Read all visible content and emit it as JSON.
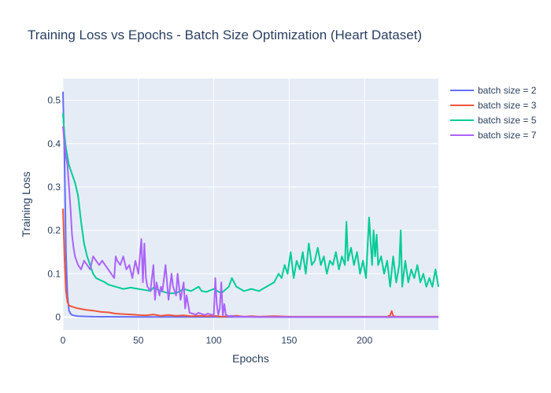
{
  "chart_data": {
    "type": "line",
    "title": "Training Loss vs Epochs - Batch Size Optimization (Heart Dataset)",
    "xlabel": "Epochs",
    "ylabel": "Training Loss",
    "xlim": [
      0,
      249
    ],
    "ylim": [
      -0.03,
      0.55
    ],
    "x_ticks": [
      0,
      50,
      100,
      150,
      200
    ],
    "y_ticks": [
      0,
      0.1,
      0.2,
      0.3,
      0.4,
      0.5
    ],
    "x_tick_labels": [
      "0",
      "50",
      "100",
      "150",
      "200"
    ],
    "y_tick_labels": [
      "0",
      "0.1",
      "0.2",
      "0.3",
      "0.4",
      "0.5"
    ],
    "grid": true,
    "legend_position": "right",
    "colors": {
      "plot_background": "#e5ecf6",
      "grid": "#ffffff",
      "text": "#2a3f5f"
    },
    "series": [
      {
        "name": "batch size = 2",
        "color": "#636efa",
        "x": [
          0,
          1,
          2,
          3,
          4,
          5,
          6,
          8,
          10,
          15,
          20,
          30,
          40,
          50,
          60,
          80,
          100,
          120,
          150,
          200,
          249
        ],
        "y": [
          0.52,
          0.37,
          0.15,
          0.05,
          0.015,
          0.008,
          0.005,
          0.003,
          0.002,
          0.0015,
          0.001,
          0.0008,
          0.0006,
          0.0005,
          0.0004,
          0.0003,
          0.0002,
          0.0002,
          0.0001,
          0.0001,
          0.0001
        ]
      },
      {
        "name": "batch size = 3",
        "color": "#ef553b",
        "x": [
          0,
          1,
          2,
          3,
          4,
          6,
          8,
          10,
          15,
          20,
          25,
          30,
          35,
          40,
          45,
          50,
          55,
          60,
          65,
          70,
          75,
          80,
          85,
          90,
          95,
          100,
          105,
          110,
          115,
          120,
          125,
          130,
          140,
          150,
          160,
          170,
          180,
          190,
          200,
          210,
          215,
          217,
          218,
          219,
          221,
          230,
          240,
          249
        ],
        "y": [
          0.25,
          0.14,
          0.06,
          0.035,
          0.027,
          0.024,
          0.022,
          0.02,
          0.017,
          0.015,
          0.012,
          0.011,
          0.008,
          0.007,
          0.006,
          0.005,
          0.004,
          0.006,
          0.003,
          0.005,
          0.003,
          0.004,
          0.002,
          0.003,
          0.002,
          0.003,
          0.001,
          0.002,
          0.003,
          0.001,
          0.002,
          0.001,
          0.002,
          0.001,
          0.001,
          0.001,
          0.001,
          0.001,
          0.001,
          0.001,
          0.001,
          0.004,
          0.014,
          0.003,
          0.001,
          0.001,
          0.001,
          0.001
        ]
      },
      {
        "name": "batch size = 5",
        "color": "#00cc96",
        "x": [
          0,
          1,
          2,
          3,
          4,
          5,
          6,
          8,
          10,
          12,
          14,
          16,
          18,
          20,
          22,
          25,
          28,
          30,
          35,
          40,
          45,
          50,
          55,
          58,
          60,
          65,
          70,
          75,
          80,
          85,
          90,
          92,
          95,
          100,
          105,
          110,
          112,
          115,
          120,
          125,
          130,
          135,
          140,
          143,
          145,
          147,
          149,
          151,
          153,
          155,
          157,
          159,
          161,
          163,
          165,
          167,
          169,
          171,
          173,
          175,
          177,
          179,
          181,
          183,
          185,
          187,
          188,
          189,
          191,
          193,
          195,
          197,
          199,
          201,
          203,
          205,
          206,
          207,
          208,
          209,
          211,
          213,
          215,
          217,
          219,
          221,
          223,
          224,
          225,
          227,
          229,
          231,
          233,
          235,
          237,
          239,
          241,
          243,
          245,
          247,
          249
        ],
        "y": [
          0.47,
          0.42,
          0.39,
          0.37,
          0.35,
          0.34,
          0.33,
          0.31,
          0.28,
          0.22,
          0.17,
          0.14,
          0.12,
          0.1,
          0.09,
          0.085,
          0.08,
          0.075,
          0.07,
          0.065,
          0.068,
          0.065,
          0.062,
          0.06,
          0.068,
          0.06,
          0.055,
          0.055,
          0.065,
          0.06,
          0.07,
          0.06,
          0.058,
          0.065,
          0.055,
          0.07,
          0.09,
          0.07,
          0.06,
          0.065,
          0.06,
          0.07,
          0.08,
          0.1,
          0.09,
          0.12,
          0.1,
          0.15,
          0.09,
          0.13,
          0.11,
          0.15,
          0.1,
          0.17,
          0.12,
          0.13,
          0.16,
          0.12,
          0.14,
          0.1,
          0.13,
          0.12,
          0.15,
          0.11,
          0.14,
          0.12,
          0.22,
          0.13,
          0.16,
          0.12,
          0.15,
          0.1,
          0.13,
          0.09,
          0.23,
          0.12,
          0.2,
          0.14,
          0.19,
          0.12,
          0.14,
          0.1,
          0.13,
          0.07,
          0.14,
          0.08,
          0.12,
          0.2,
          0.07,
          0.13,
          0.08,
          0.11,
          0.09,
          0.12,
          0.08,
          0.1,
          0.07,
          0.09,
          0.07,
          0.11,
          0.07
        ]
      },
      {
        "name": "batch size = 7",
        "color": "#ab63fa",
        "x": [
          0,
          1,
          2,
          3,
          4,
          5,
          6,
          7,
          8,
          9,
          10,
          12,
          14,
          16,
          18,
          20,
          22,
          24,
          26,
          28,
          30,
          32,
          34,
          35,
          36,
          38,
          40,
          42,
          44,
          46,
          48,
          50,
          52,
          53,
          54,
          55,
          56,
          58,
          60,
          61,
          62,
          64,
          65,
          66,
          68,
          70,
          72,
          73,
          74,
          75,
          76,
          78,
          80,
          81,
          82,
          84,
          86,
          88,
          90,
          92,
          94,
          96,
          98,
          100,
          101,
          102,
          103,
          104,
          105,
          106,
          107,
          108,
          110,
          112,
          114,
          116,
          120,
          130,
          150,
          200,
          249
        ],
        "y": [
          0.44,
          0.4,
          0.37,
          0.35,
          0.3,
          0.25,
          0.19,
          0.16,
          0.14,
          0.13,
          0.12,
          0.11,
          0.13,
          0.12,
          0.11,
          0.14,
          0.13,
          0.12,
          0.13,
          0.12,
          0.11,
          0.1,
          0.09,
          0.14,
          0.13,
          0.12,
          0.14,
          0.11,
          0.12,
          0.09,
          0.13,
          0.1,
          0.18,
          0.08,
          0.17,
          0.09,
          0.07,
          0.06,
          0.12,
          0.04,
          0.08,
          0.05,
          0.07,
          0.06,
          0.12,
          0.04,
          0.1,
          0.07,
          0.06,
          0.05,
          0.1,
          0.04,
          0.08,
          0.02,
          0.05,
          0.01,
          0.008,
          0.006,
          0.01,
          0.007,
          0.005,
          0.008,
          0.006,
          0.004,
          0.09,
          0.03,
          0.005,
          0.02,
          0.08,
          0.004,
          0.03,
          0.005,
          0.002,
          0.003,
          0.001,
          0.001,
          0.001,
          0.0005,
          0.0003,
          0.0002,
          0.0002
        ]
      }
    ]
  }
}
